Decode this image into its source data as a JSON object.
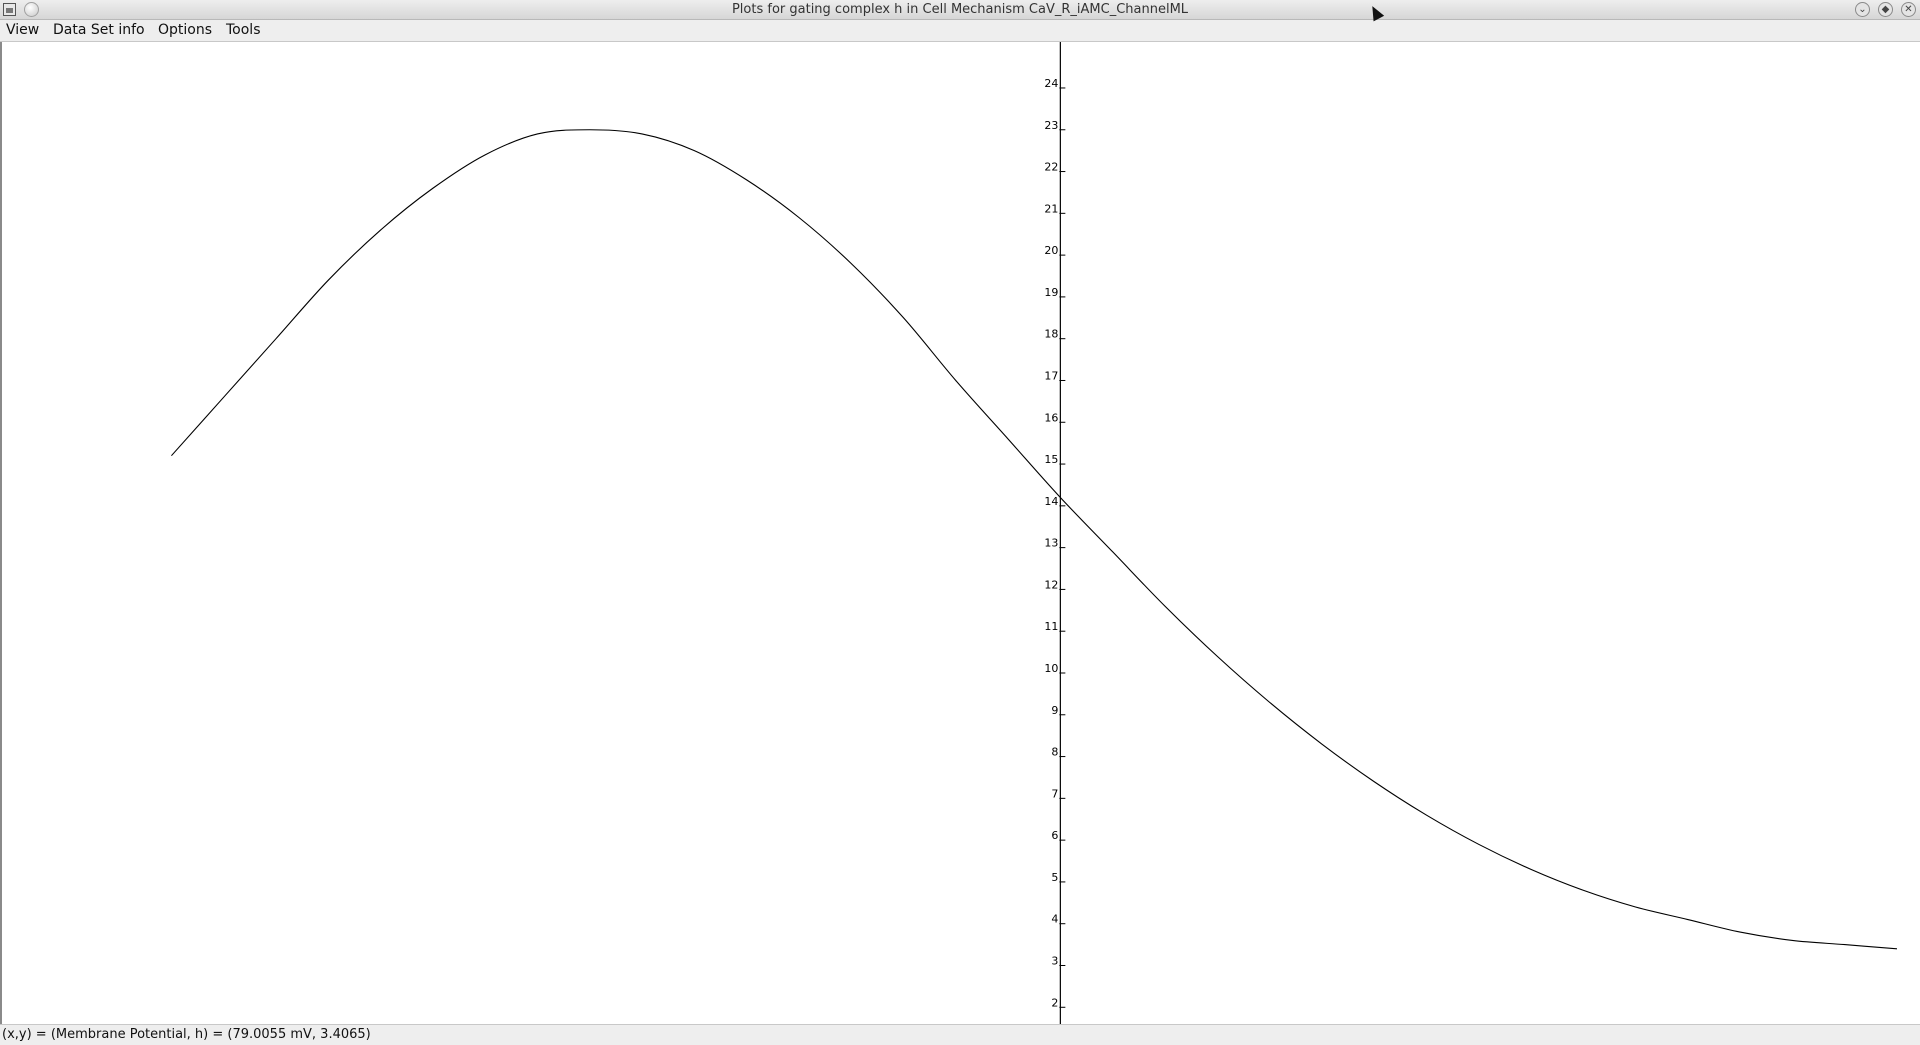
{
  "window": {
    "title": "Plots for gating complex h in Cell Mechanism CaV_R_iAMC_ChannelML",
    "controls": [
      "minimize-icon",
      "maximize-icon",
      "close-icon"
    ]
  },
  "menu": {
    "items": [
      "View",
      "Data Set info",
      "Options",
      "Tools"
    ]
  },
  "status": {
    "text": "(x,y) = (Membrane Potential, h) = (79.0055 mV, 3.4065)"
  },
  "chart_data": {
    "type": "line",
    "title": "",
    "xlabel": "Membrane Potential",
    "ylabel": "h",
    "x_unit": "mV",
    "grid": false,
    "ylim": [
      1.6,
      25.1
    ],
    "xlim": [
      -101.2,
      82.2
    ],
    "y_ticks": [
      2,
      3,
      4,
      5,
      6,
      7,
      8,
      9,
      10,
      11,
      12,
      13,
      14,
      15,
      16,
      17,
      18,
      19,
      20,
      21,
      22,
      23,
      24
    ],
    "series": [
      {
        "name": "",
        "x": [
          -85,
          -80,
          -75,
          -70,
          -65,
          -60,
          -55,
          -50,
          -45,
          -40,
          -35,
          -30,
          -25,
          -20,
          -15,
          -10,
          -5,
          0,
          5,
          10,
          15,
          20,
          25,
          30,
          35,
          40,
          45,
          50,
          55,
          60,
          65,
          70,
          75,
          80
        ],
        "y": [
          15.2,
          16.6,
          18.0,
          19.4,
          20.6,
          21.6,
          22.4,
          22.9,
          23.0,
          22.9,
          22.5,
          21.8,
          20.9,
          19.8,
          18.5,
          17.0,
          15.6,
          14.2,
          12.9,
          11.6,
          10.4,
          9.3,
          8.3,
          7.4,
          6.6,
          5.9,
          5.3,
          4.8,
          4.4,
          4.1,
          3.8,
          3.6,
          3.5,
          3.4
        ]
      }
    ],
    "status_readout": {
      "x": 79.0055,
      "y": 3.4065
    }
  }
}
